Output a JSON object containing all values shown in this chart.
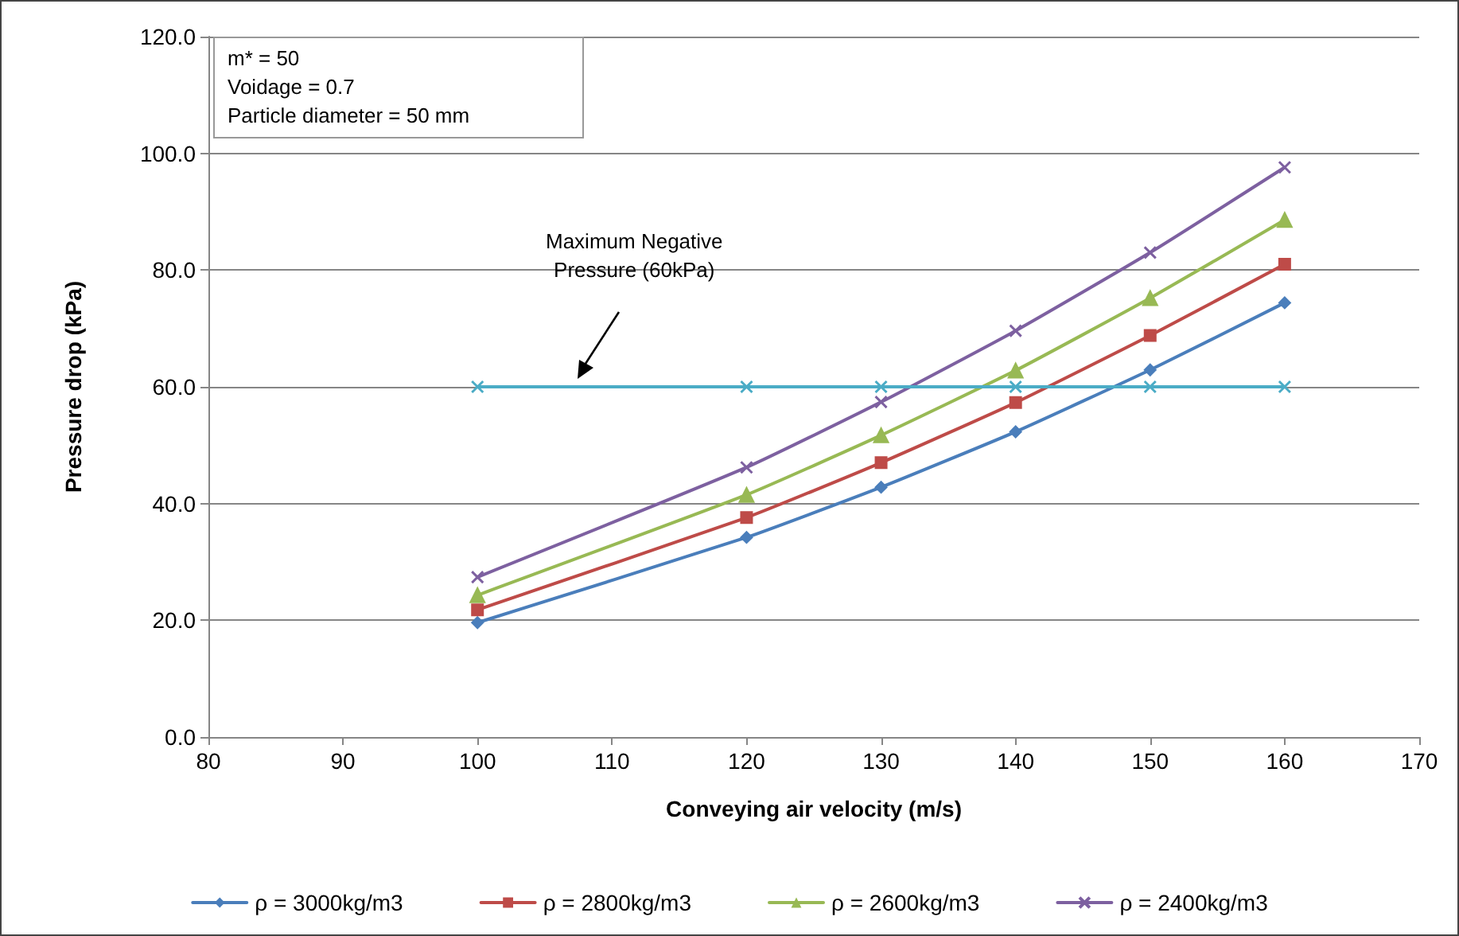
{
  "chart_data": {
    "type": "line",
    "xlabel": "Conveying air velocity (m/s)",
    "ylabel": "Pressure drop (kPa)",
    "x": [
      100,
      120,
      130,
      140,
      150,
      160
    ],
    "series": [
      {
        "name": "ρ = 3000kg/m3",
        "color": "#4a7ebb",
        "marker": "diamond",
        "values": [
          19.6,
          34.2,
          42.8,
          52.3,
          62.9,
          74.4
        ]
      },
      {
        "name": "ρ = 2800kg/m3",
        "color": "#be4b48",
        "marker": "square",
        "values": [
          21.8,
          37.6,
          47.0,
          57.3,
          68.8,
          81.0
        ]
      },
      {
        "name": "ρ = 2600kg/m3",
        "color": "#98b954",
        "marker": "triangle",
        "values": [
          24.3,
          41.5,
          51.7,
          62.8,
          75.2,
          88.6
        ]
      },
      {
        "name": "ρ = 2400kg/m3",
        "color": "#7d60a0",
        "marker": "cross",
        "values": [
          27.4,
          46.2,
          57.4,
          69.6,
          83.0,
          97.6
        ]
      },
      {
        "color": "#4bacc6",
        "marker": "cross",
        "values": [
          60,
          60,
          60,
          60,
          60,
          60
        ]
      }
    ],
    "xlim": [
      80,
      170
    ],
    "xticks": [
      80,
      90,
      100,
      110,
      120,
      130,
      140,
      150,
      160,
      170
    ],
    "ylim": [
      0,
      120
    ],
    "yticks": [
      {
        "value": 0,
        "label": "0.0"
      },
      {
        "value": 20,
        "label": "20.0"
      },
      {
        "value": 40,
        "label": "40.0"
      },
      {
        "value": 60,
        "label": "60.0"
      },
      {
        "value": 80,
        "label": "80.0"
      },
      {
        "value": 100,
        "label": "100.0"
      },
      {
        "value": 120,
        "label": "120.0"
      }
    ],
    "grid": "y",
    "legend": "bottom",
    "annotations": [
      "m* = 50\nVoidage = 0.7\nParticle diameter = 50 mm",
      "Maximum Negative\nPressure (60kPa)"
    ]
  }
}
